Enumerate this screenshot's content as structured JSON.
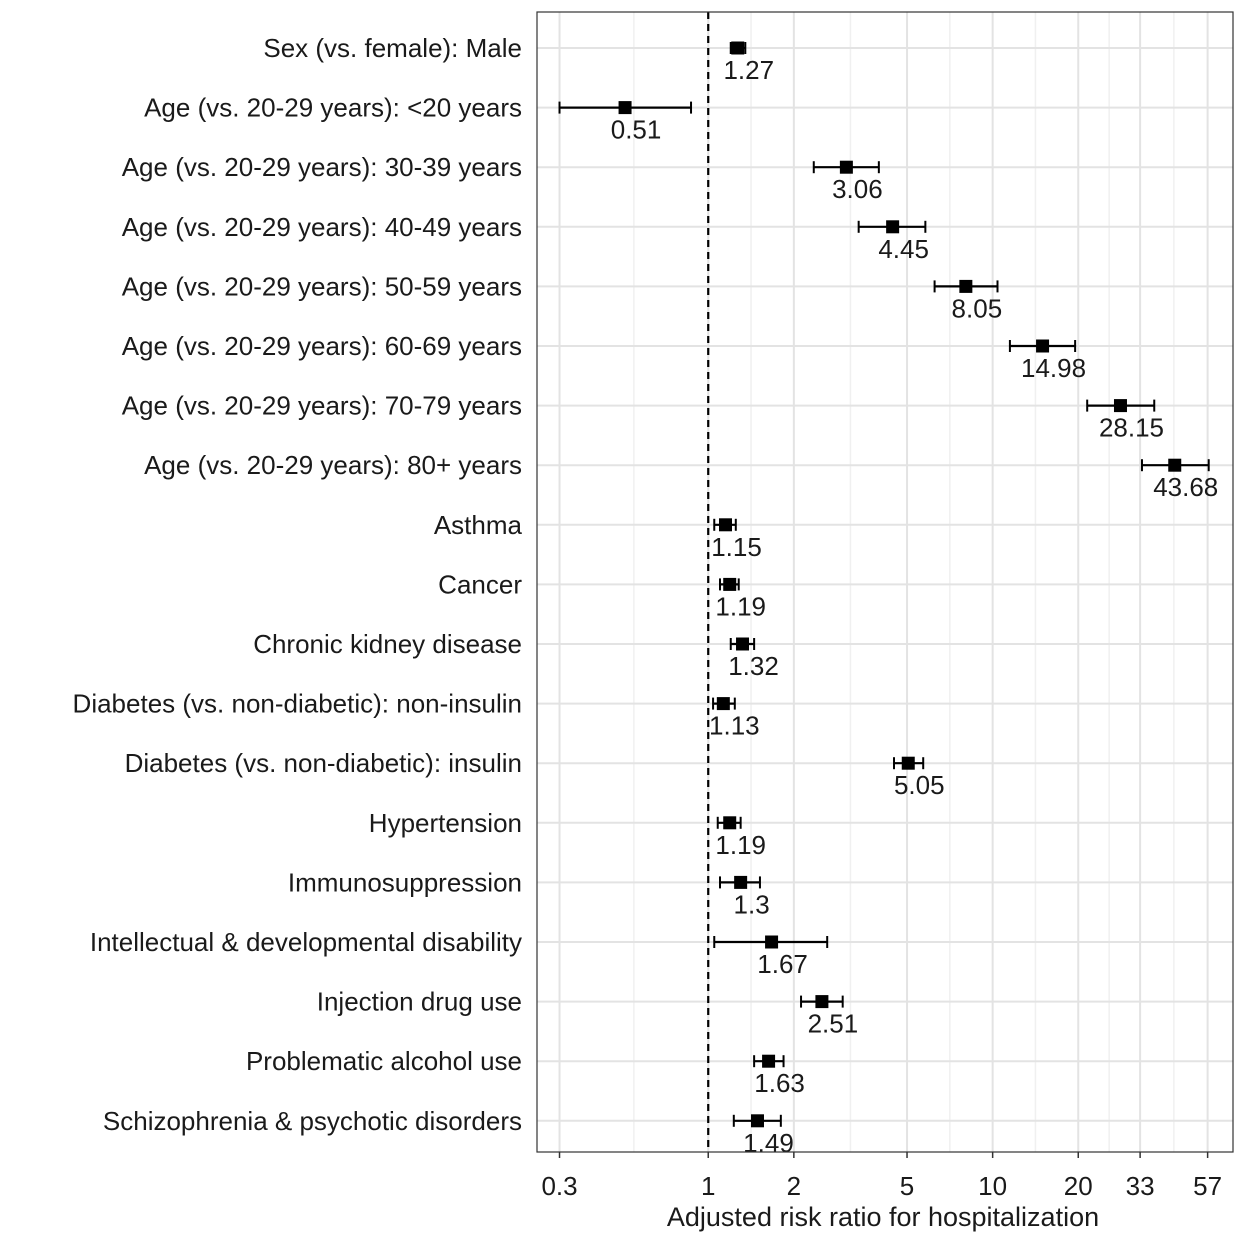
{
  "chart_data": {
    "type": "forest",
    "xlabel": "Adjusted risk ratio for hospitalization",
    "x_scale": "log",
    "xlim": [
      0.25,
      70
    ],
    "x_ticks": [
      0.3,
      1,
      2,
      5,
      10,
      20,
      33,
      57
    ],
    "x_tick_labels": [
      "0.3",
      "1",
      "2",
      "5",
      "10",
      "20",
      "33",
      "57"
    ],
    "reference_line": 1,
    "grid": true,
    "rows": [
      {
        "label": "Sex (vs. female): Male",
        "value": 1.27,
        "value_label": "1.27",
        "ci": [
          1.2,
          1.35
        ]
      },
      {
        "label": "Age (vs. 20-29 years): <20 years",
        "value": 0.51,
        "value_label": "0.51",
        "ci": [
          0.3,
          0.87
        ]
      },
      {
        "label": "Age (vs. 20-29 years): 30-39 years",
        "value": 3.06,
        "value_label": "3.06",
        "ci": [
          2.35,
          3.98
        ]
      },
      {
        "label": "Age (vs. 20-29 years): 40-49 years",
        "value": 4.45,
        "value_label": "4.45",
        "ci": [
          3.38,
          5.8
        ]
      },
      {
        "label": "Age (vs. 20-29 years): 50-59 years",
        "value": 8.05,
        "value_label": "8.05",
        "ci": [
          6.25,
          10.4
        ]
      },
      {
        "label": "Age (vs. 20-29 years): 60-69 years",
        "value": 14.98,
        "value_label": "14.98",
        "ci": [
          11.5,
          19.5
        ]
      },
      {
        "label": "Age (vs. 20-29 years): 70-79 years",
        "value": 28.15,
        "value_label": "28.15",
        "ci": [
          21.5,
          37.0
        ]
      },
      {
        "label": "Age (vs. 20-29 years): 80+ years",
        "value": 43.68,
        "value_label": "43.68",
        "ci": [
          33.5,
          57.5
        ]
      },
      {
        "label": "Asthma",
        "value": 1.15,
        "value_label": "1.15",
        "ci": [
          1.05,
          1.25
        ]
      },
      {
        "label": "Cancer",
        "value": 1.19,
        "value_label": "1.19",
        "ci": [
          1.1,
          1.28
        ]
      },
      {
        "label": "Chronic kidney disease",
        "value": 1.32,
        "value_label": "1.32",
        "ci": [
          1.2,
          1.45
        ]
      },
      {
        "label": "Diabetes (vs. non-diabetic): non-insulin",
        "value": 1.13,
        "value_label": "1.13",
        "ci": [
          1.04,
          1.24
        ]
      },
      {
        "label": "Diabetes (vs. non-diabetic): insulin",
        "value": 5.05,
        "value_label": "5.05",
        "ci": [
          4.5,
          5.7
        ]
      },
      {
        "label": "Hypertension",
        "value": 1.19,
        "value_label": "1.19",
        "ci": [
          1.08,
          1.3
        ]
      },
      {
        "label": "Immunosuppression",
        "value": 1.3,
        "value_label": "1.3",
        "ci": [
          1.1,
          1.52
        ]
      },
      {
        "label": "Intellectual & developmental disability",
        "value": 1.67,
        "value_label": "1.67",
        "ci": [
          1.05,
          2.62
        ]
      },
      {
        "label": "Injection drug use",
        "value": 2.51,
        "value_label": "2.51",
        "ci": [
          2.12,
          2.97
        ]
      },
      {
        "label": "Problematic alcohol use",
        "value": 1.63,
        "value_label": "1.63",
        "ci": [
          1.45,
          1.84
        ]
      },
      {
        "label": "Schizophrenia & psychotic disorders",
        "value": 1.49,
        "value_label": "1.49",
        "ci": [
          1.23,
          1.8
        ]
      }
    ],
    "colors": {
      "marker": "#000000",
      "grid_major": "#e3e3e3",
      "grid_minor": "#f0f0f0",
      "panel_border": "#333333",
      "text": "#1a1a1a"
    }
  }
}
